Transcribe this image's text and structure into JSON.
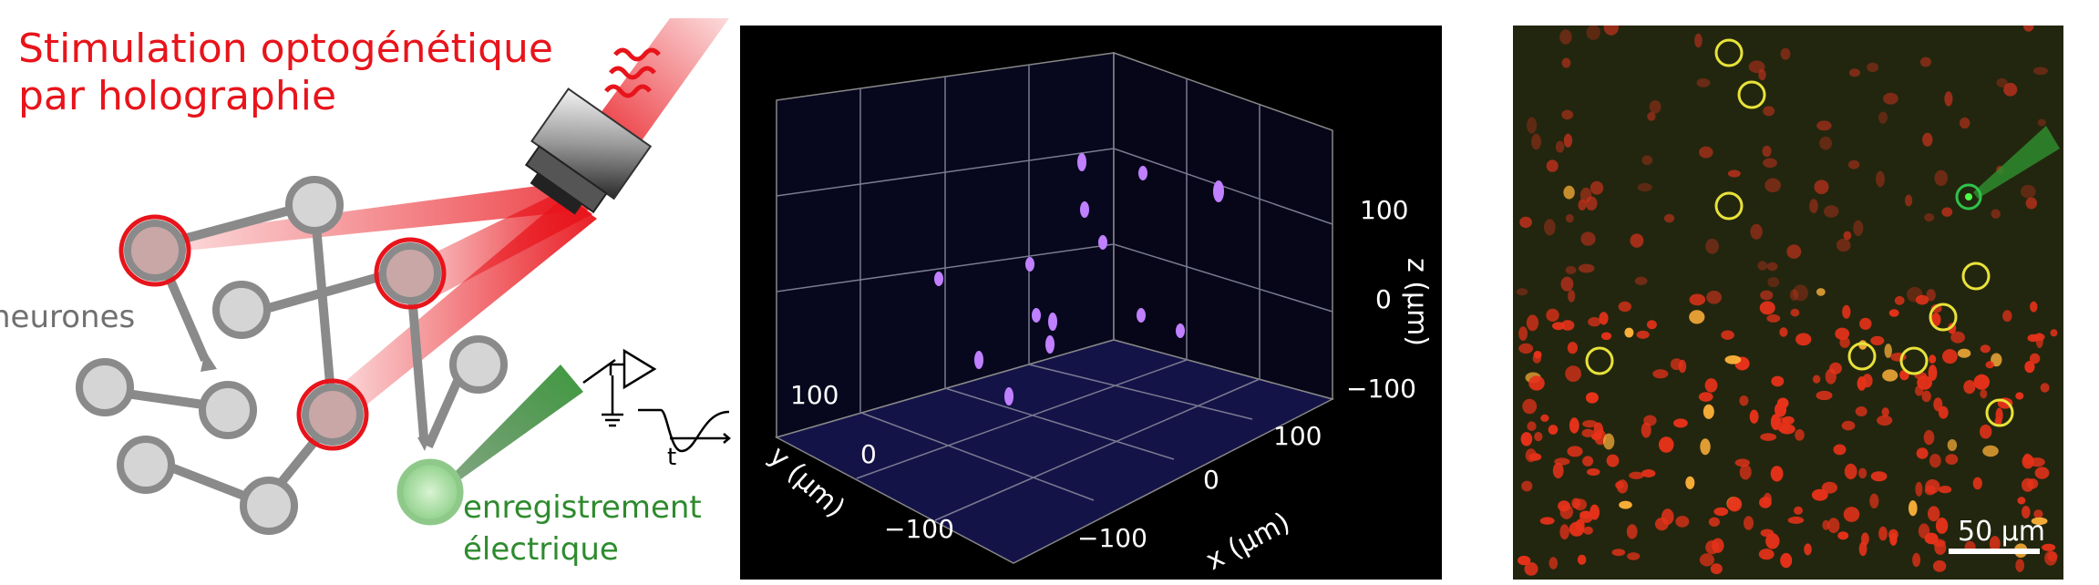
{
  "title_line1": "Stimulation optogénétique",
  "title_line2": "par holographie",
  "label_neurons": "neurones",
  "label_recording_1": "enregistrement",
  "label_recording_2": "électrique",
  "label_time": "t",
  "plot3d": {
    "x_label": "x (µm)",
    "y_label": "y (µm)",
    "z_label": "z (µm)",
    "x_ticks": [
      "100",
      "0",
      "−100"
    ],
    "y_ticks": [
      "100",
      "0",
      "−100"
    ],
    "z_ticks": [
      "100",
      "0",
      "−100"
    ]
  },
  "scale_bar_label": "50 µm",
  "colors": {
    "stim_red": "#e8141b",
    "recording_green": "#2e8b2e",
    "neuron_gray": "#8a8a8a",
    "spot_violet": "#b46cff",
    "circle_yellow": "#e8e23a"
  }
}
